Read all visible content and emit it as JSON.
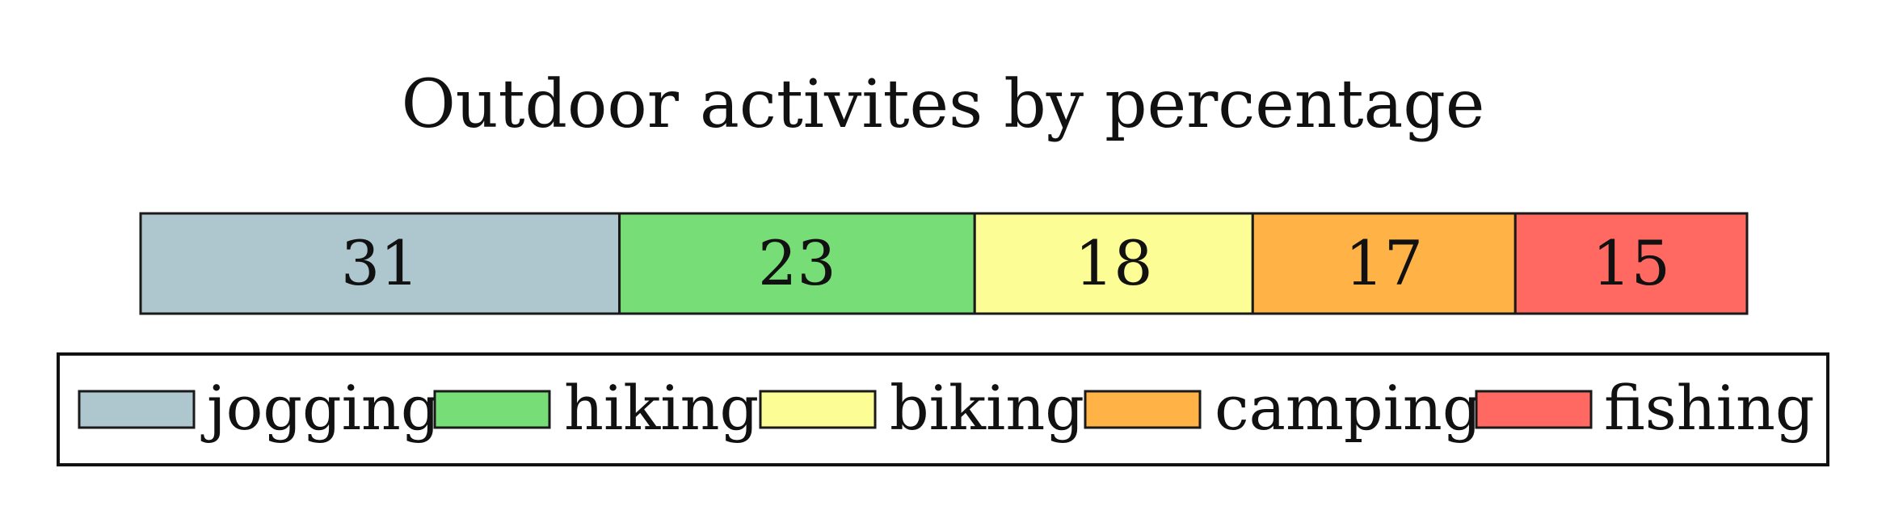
{
  "chart_data": {
    "type": "bar",
    "orientation": "horizontal-stacked",
    "title": "Outdoor activites by percentage",
    "categories": [
      "jogging",
      "hiking",
      "biking",
      "camping",
      "fishing"
    ],
    "values": [
      31,
      23,
      18,
      17,
      15
    ],
    "colors": [
      "#aec7cf",
      "#77dd77",
      "#fdfd96",
      "#ffb347",
      "#ff6961"
    ],
    "legend": {
      "position": "bottom",
      "entries": [
        "jogging",
        "hiking",
        "biking",
        "camping",
        "fishing"
      ]
    },
    "grid": false
  }
}
